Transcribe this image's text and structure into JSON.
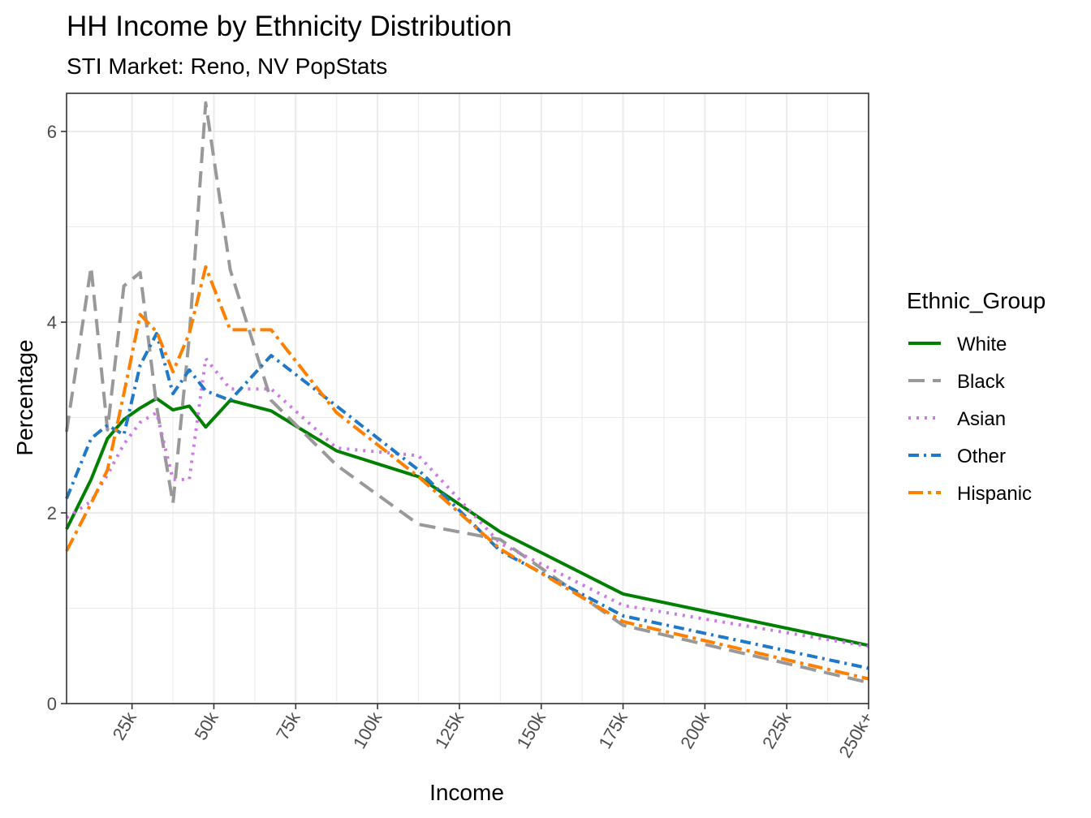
{
  "chart_data": {
    "type": "line",
    "title": "HH Income by Ethnicity Distribution",
    "subtitle": "STI Market: Reno, NV PopStats",
    "xlabel": "Income",
    "ylabel": "Percentage",
    "xlim": [
      5,
      250
    ],
    "ylim": [
      0,
      6.4
    ],
    "x_ticks": [
      {
        "value": 25,
        "label": "25k"
      },
      {
        "value": 50,
        "label": "50k"
      },
      {
        "value": 75,
        "label": "75k"
      },
      {
        "value": 100,
        "label": "100k"
      },
      {
        "value": 125,
        "label": "125k"
      },
      {
        "value": 150,
        "label": "150k"
      },
      {
        "value": 175,
        "label": "175k"
      },
      {
        "value": 200,
        "label": "200k"
      },
      {
        "value": 225,
        "label": "225k"
      },
      {
        "value": 250,
        "label": "250k+"
      }
    ],
    "y_ticks": [
      {
        "value": 0,
        "label": "0"
      },
      {
        "value": 2,
        "label": "2"
      },
      {
        "value": 4,
        "label": "4"
      },
      {
        "value": 6,
        "label": "6"
      }
    ],
    "grid": true,
    "legend": {
      "title": "Ethnic_Group",
      "position": "right"
    },
    "series": [
      {
        "name": "White",
        "color": "#008000",
        "dash": "solid",
        "x": [
          5,
          12.5,
          17.5,
          22.5,
          27.5,
          32.5,
          37.5,
          42.5,
          47.5,
          55,
          67.5,
          87.5,
          112.5,
          137.5,
          175,
          250
        ],
        "y": [
          1.83,
          2.35,
          2.78,
          2.98,
          3.1,
          3.2,
          3.08,
          3.12,
          2.9,
          3.18,
          3.07,
          2.65,
          2.38,
          1.8,
          1.15,
          0.61
        ]
      },
      {
        "name": "Black",
        "color": "#999999",
        "dash": "longdash",
        "x": [
          5,
          12.5,
          17.5,
          22.5,
          27.5,
          32.5,
          37.5,
          42.5,
          47.5,
          55,
          67.5,
          87.5,
          112.5,
          137.5,
          175,
          250
        ],
        "y": [
          2.85,
          4.58,
          2.87,
          4.38,
          4.52,
          3.12,
          2.1,
          3.85,
          6.3,
          4.55,
          3.18,
          2.5,
          1.88,
          1.72,
          0.82,
          0.22
        ]
      },
      {
        "name": "Asian",
        "color": "#CC79E6",
        "dash": "dotted",
        "x": [
          5,
          12.5,
          17.5,
          22.5,
          27.5,
          32.5,
          37.5,
          42.5,
          47.5,
          55,
          67.5,
          87.5,
          112.5,
          137.5,
          175,
          250
        ],
        "y": [
          1.95,
          2.12,
          2.4,
          2.72,
          2.95,
          3.05,
          2.35,
          2.35,
          3.62,
          3.3,
          3.3,
          2.68,
          2.6,
          1.68,
          1.03,
          0.6
        ]
      },
      {
        "name": "Other",
        "color": "#1F78C8",
        "dash": "dashdot",
        "x": [
          5,
          12.5,
          17.5,
          22.5,
          27.5,
          32.5,
          37.5,
          42.5,
          47.5,
          55,
          67.5,
          87.5,
          112.5,
          137.5,
          175,
          250
        ],
        "y": [
          2.15,
          2.78,
          2.92,
          2.82,
          3.55,
          3.88,
          3.25,
          3.5,
          3.28,
          3.18,
          3.65,
          3.12,
          2.45,
          1.6,
          0.92,
          0.37
        ]
      },
      {
        "name": "Hispanic",
        "color": "#FF7F00",
        "dash": "twodash",
        "x": [
          5,
          12.5,
          17.5,
          22.5,
          27.5,
          32.5,
          37.5,
          42.5,
          47.5,
          55,
          67.5,
          87.5,
          112.5,
          137.5,
          175,
          250
        ],
        "y": [
          1.6,
          2.1,
          2.45,
          3.25,
          4.08,
          3.9,
          3.48,
          3.88,
          4.58,
          3.92,
          3.92,
          3.05,
          2.38,
          1.62,
          0.86,
          0.26
        ]
      }
    ]
  }
}
